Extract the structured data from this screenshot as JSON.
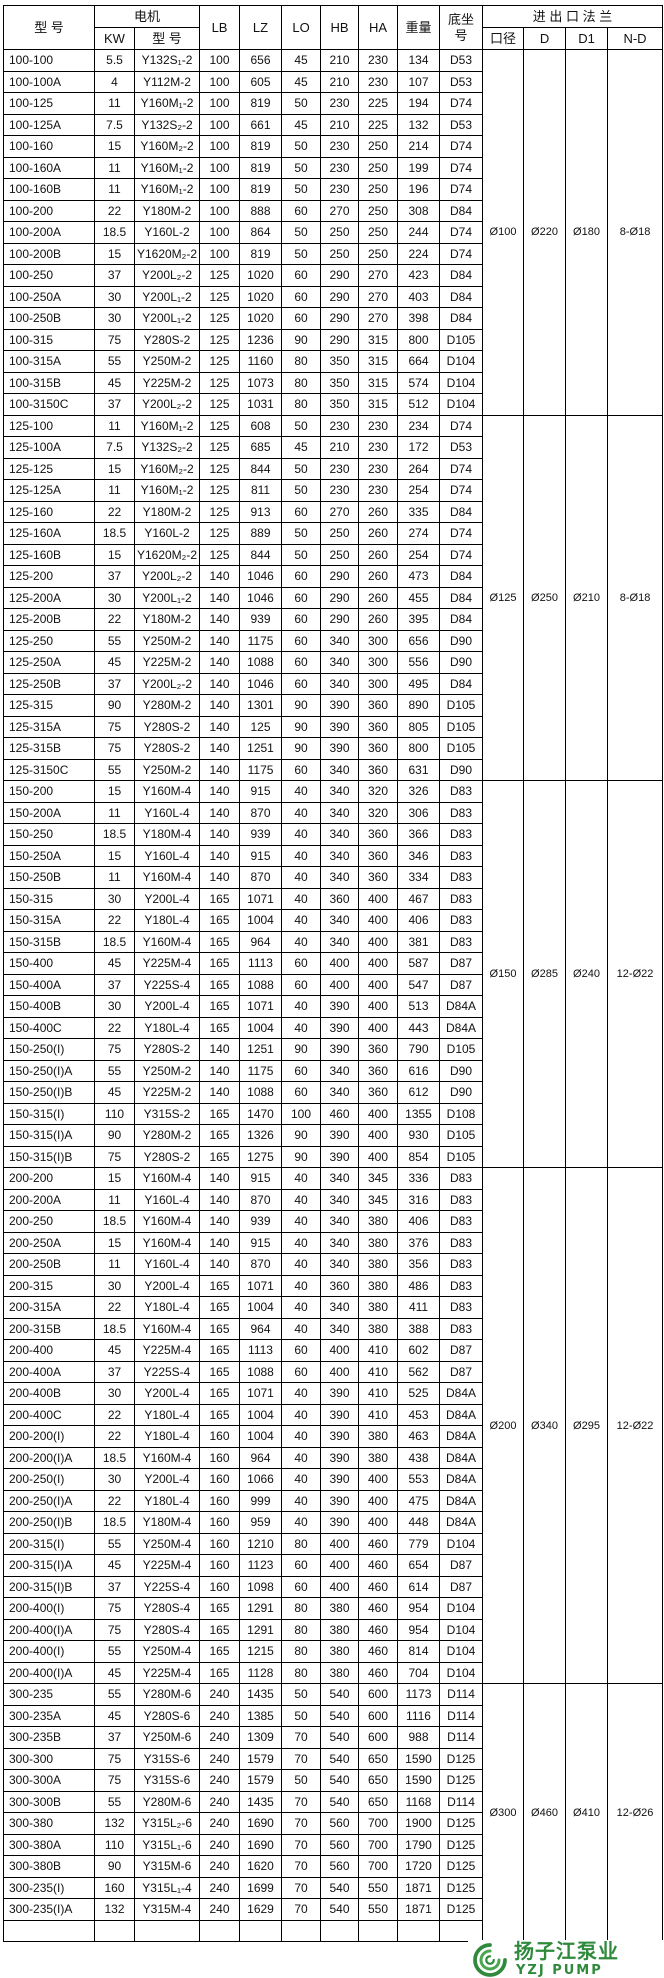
{
  "header": {
    "model": "型 号",
    "motor": "电机",
    "kw": "KW",
    "motor_model": "型 号",
    "lb": "LB",
    "lz": "LZ",
    "lo": "LO",
    "hb": "HB",
    "ha": "HA",
    "weight": "重量",
    "base_line1": "底坐",
    "base_line2": "号",
    "flange": "进 出 口 法 兰",
    "bore": "口径",
    "d": "D",
    "d1": "D1",
    "nd": "N-D"
  },
  "groups": [
    {
      "flange": [
        "Ø100",
        "Ø220",
        "Ø180",
        "8-Ø18"
      ],
      "rows": [
        [
          "100-100",
          "5.5",
          "Y132S₁-2",
          "100",
          "656",
          "45",
          "210",
          "230",
          "134",
          "D53"
        ],
        [
          "100-100A",
          "4",
          "Y112M-2",
          "100",
          "605",
          "45",
          "210",
          "230",
          "107",
          "D53"
        ],
        [
          "100-125",
          "11",
          "Y160M₁-2",
          "100",
          "819",
          "50",
          "230",
          "225",
          "194",
          "D74"
        ],
        [
          "100-125A",
          "7.5",
          "Y132S₂-2",
          "100",
          "661",
          "45",
          "210",
          "225",
          "132",
          "D53"
        ],
        [
          "100-160",
          "15",
          "Y160M₂-2",
          "100",
          "819",
          "50",
          "230",
          "250",
          "214",
          "D74"
        ],
        [
          "100-160A",
          "11",
          "Y160M₁-2",
          "100",
          "819",
          "50",
          "230",
          "250",
          "199",
          "D74"
        ],
        [
          "100-160B",
          "11",
          "Y160M₁-2",
          "100",
          "819",
          "50",
          "230",
          "250",
          "196",
          "D74"
        ],
        [
          "100-200",
          "22",
          "Y180M-2",
          "100",
          "888",
          "60",
          "270",
          "250",
          "308",
          "D84"
        ],
        [
          "100-200A",
          "18.5",
          "Y160L-2",
          "100",
          "864",
          "50",
          "250",
          "250",
          "244",
          "D74"
        ],
        [
          "100-200B",
          "15",
          "Y1620M₂-2",
          "100",
          "819",
          "50",
          "250",
          "250",
          "224",
          "D74"
        ],
        [
          "100-250",
          "37",
          "Y200L₂-2",
          "125",
          "1020",
          "60",
          "290",
          "270",
          "423",
          "D84"
        ],
        [
          "100-250A",
          "30",
          "Y200L₁-2",
          "125",
          "1020",
          "60",
          "290",
          "270",
          "403",
          "D84"
        ],
        [
          "100-250B",
          "30",
          "Y200L₁-2",
          "125",
          "1020",
          "60",
          "290",
          "270",
          "398",
          "D84"
        ],
        [
          "100-315",
          "75",
          "Y280S-2",
          "125",
          "1236",
          "90",
          "290",
          "315",
          "800",
          "D105"
        ],
        [
          "100-315A",
          "55",
          "Y250M-2",
          "125",
          "1160",
          "80",
          "350",
          "315",
          "664",
          "D104"
        ],
        [
          "100-315B",
          "45",
          "Y225M-2",
          "125",
          "1073",
          "80",
          "350",
          "315",
          "574",
          "D104"
        ],
        [
          "100-3150C",
          "37",
          "Y200L₂-2",
          "125",
          "1031",
          "80",
          "350",
          "315",
          "512",
          "D104"
        ]
      ]
    },
    {
      "flange": [
        "Ø125",
        "Ø250",
        "Ø210",
        "8-Ø18"
      ],
      "rows": [
        [
          "125-100",
          "11",
          "Y160M₁-2",
          "125",
          "608",
          "50",
          "230",
          "230",
          "234",
          "D74"
        ],
        [
          "125-100A",
          "7.5",
          "Y132S₂-2",
          "125",
          "685",
          "45",
          "210",
          "230",
          "172",
          "D53"
        ],
        [
          "125-125",
          "15",
          "Y160M₂-2",
          "125",
          "844",
          "50",
          "230",
          "230",
          "264",
          "D74"
        ],
        [
          "125-125A",
          "11",
          "Y160M₁-2",
          "125",
          "811",
          "50",
          "230",
          "230",
          "254",
          "D74"
        ],
        [
          "125-160",
          "22",
          "Y180M-2",
          "125",
          "913",
          "60",
          "270",
          "260",
          "335",
          "D84"
        ],
        [
          "125-160A",
          "18.5",
          "Y160L-2",
          "125",
          "889",
          "50",
          "250",
          "260",
          "274",
          "D74"
        ],
        [
          "125-160B",
          "15",
          "Y1620M₂-2",
          "125",
          "844",
          "50",
          "250",
          "260",
          "254",
          "D74"
        ],
        [
          "125-200",
          "37",
          "Y200L₂-2",
          "140",
          "1046",
          "60",
          "290",
          "260",
          "473",
          "D84"
        ],
        [
          "125-200A",
          "30",
          "Y200L₁-2",
          "140",
          "1046",
          "60",
          "290",
          "260",
          "455",
          "D84"
        ],
        [
          "125-200B",
          "22",
          "Y180M-2",
          "140",
          "939",
          "60",
          "290",
          "260",
          "395",
          "D84"
        ],
        [
          "125-250",
          "55",
          "Y250M-2",
          "140",
          "1175",
          "60",
          "340",
          "300",
          "656",
          "D90"
        ],
        [
          "125-250A",
          "45",
          "Y225M-2",
          "140",
          "1088",
          "60",
          "340",
          "300",
          "556",
          "D90"
        ],
        [
          "125-250B",
          "37",
          "Y200L₂-2",
          "140",
          "1046",
          "60",
          "340",
          "300",
          "495",
          "D84"
        ],
        [
          "125-315",
          "90",
          "Y280M-2",
          "140",
          "1301",
          "90",
          "390",
          "360",
          "890",
          "D105"
        ],
        [
          "125-315A",
          "75",
          "Y280S-2",
          "140",
          "125",
          "90",
          "390",
          "360",
          "805",
          "D105"
        ],
        [
          "125-315B",
          "75",
          "Y280S-2",
          "140",
          "1251",
          "90",
          "390",
          "360",
          "800",
          "D105"
        ],
        [
          "125-3150C",
          "55",
          "Y250M-2",
          "140",
          "1175",
          "60",
          "340",
          "360",
          "631",
          "D90"
        ]
      ]
    },
    {
      "flange": [
        "Ø150",
        "Ø285",
        "Ø240",
        "12-Ø22"
      ],
      "rows": [
        [
          "150-200",
          "15",
          "Y160M-4",
          "140",
          "915",
          "40",
          "340",
          "320",
          "326",
          "D83"
        ],
        [
          "150-200A",
          "11",
          "Y160L-4",
          "140",
          "870",
          "40",
          "340",
          "320",
          "306",
          "D83"
        ],
        [
          "150-250",
          "18.5",
          "Y180M-4",
          "140",
          "939",
          "40",
          "340",
          "360",
          "366",
          "D83"
        ],
        [
          "150-250A",
          "15",
          "Y160L-4",
          "140",
          "915",
          "40",
          "340",
          "360",
          "346",
          "D83"
        ],
        [
          "150-250B",
          "11",
          "Y160M-4",
          "140",
          "870",
          "40",
          "340",
          "360",
          "334",
          "D83"
        ],
        [
          "150-315",
          "30",
          "Y200L-4",
          "165",
          "1071",
          "40",
          "360",
          "400",
          "467",
          "D83"
        ],
        [
          "150-315A",
          "22",
          "Y180L-4",
          "165",
          "1004",
          "40",
          "340",
          "400",
          "406",
          "D83"
        ],
        [
          "150-315B",
          "18.5",
          "Y160M-4",
          "165",
          "964",
          "40",
          "340",
          "400",
          "381",
          "D83"
        ],
        [
          "150-400",
          "45",
          "Y225M-4",
          "165",
          "1113",
          "60",
          "400",
          "400",
          "587",
          "D87"
        ],
        [
          "150-400A",
          "37",
          "Y225S-4",
          "165",
          "1088",
          "60",
          "400",
          "400",
          "547",
          "D87"
        ],
        [
          "150-400B",
          "30",
          "Y200L-4",
          "165",
          "1071",
          "40",
          "390",
          "400",
          "513",
          "D84A"
        ],
        [
          "150-400C",
          "22",
          "Y180L-4",
          "165",
          "1004",
          "40",
          "390",
          "400",
          "443",
          "D84A"
        ],
        [
          "150-250(I)",
          "75",
          "Y280S-2",
          "140",
          "1251",
          "90",
          "390",
          "360",
          "790",
          "D105"
        ],
        [
          "150-250(I)A",
          "55",
          "Y250M-2",
          "140",
          "1175",
          "60",
          "340",
          "360",
          "616",
          "D90"
        ],
        [
          "150-250(I)B",
          "45",
          "Y225M-2",
          "140",
          "1088",
          "60",
          "340",
          "360",
          "612",
          "D90"
        ],
        [
          "150-315(I)",
          "110",
          "Y315S-2",
          "165",
          "1470",
          "100",
          "460",
          "400",
          "1355",
          "D108"
        ],
        [
          "150-315(I)A",
          "90",
          "Y280M-2",
          "165",
          "1326",
          "90",
          "390",
          "400",
          "930",
          "D105"
        ],
        [
          "150-315(I)B",
          "75",
          "Y280S-2",
          "165",
          "1275",
          "90",
          "390",
          "400",
          "854",
          "D105"
        ]
      ]
    },
    {
      "flange": [
        "Ø200",
        "Ø340",
        "Ø295",
        "12-Ø22"
      ],
      "rows": [
        [
          "200-200",
          "15",
          "Y160M-4",
          "140",
          "915",
          "40",
          "340",
          "345",
          "336",
          "D83"
        ],
        [
          "200-200A",
          "11",
          "Y160L-4",
          "140",
          "870",
          "40",
          "340",
          "345",
          "316",
          "D83"
        ],
        [
          "200-250",
          "18.5",
          "Y160M-4",
          "140",
          "939",
          "40",
          "340",
          "380",
          "406",
          "D83"
        ],
        [
          "200-250A",
          "15",
          "Y160M-4",
          "140",
          "915",
          "40",
          "340",
          "380",
          "376",
          "D83"
        ],
        [
          "200-250B",
          "11",
          "Y160L-4",
          "140",
          "870",
          "40",
          "340",
          "380",
          "356",
          "D83"
        ],
        [
          "200-315",
          "30",
          "Y200L-4",
          "165",
          "1071",
          "40",
          "360",
          "380",
          "486",
          "D83"
        ],
        [
          "200-315A",
          "22",
          "Y180L-4",
          "165",
          "1004",
          "40",
          "340",
          "380",
          "411",
          "D83"
        ],
        [
          "200-315B",
          "18.5",
          "Y160M-4",
          "165",
          "964",
          "40",
          "340",
          "380",
          "388",
          "D83"
        ],
        [
          "200-400",
          "45",
          "Y225M-4",
          "165",
          "1113",
          "60",
          "400",
          "410",
          "602",
          "D87"
        ],
        [
          "200-400A",
          "37",
          "Y225S-4",
          "165",
          "1088",
          "60",
          "400",
          "410",
          "562",
          "D87"
        ],
        [
          "200-400B",
          "30",
          "Y200L-4",
          "165",
          "1071",
          "40",
          "390",
          "410",
          "525",
          "D84A"
        ],
        [
          "200-400C",
          "22",
          "Y180L-4",
          "165",
          "1004",
          "40",
          "390",
          "410",
          "453",
          "D84A"
        ],
        [
          "200-200(I)",
          "22",
          "Y180L-4",
          "160",
          "1004",
          "40",
          "390",
          "380",
          "463",
          "D84A"
        ],
        [
          "200-200(I)A",
          "18.5",
          "Y160M-4",
          "160",
          "964",
          "40",
          "390",
          "380",
          "438",
          "D84A"
        ],
        [
          "200-250(I)",
          "30",
          "Y200L-4",
          "160",
          "1066",
          "40",
          "390",
          "400",
          "553",
          "D84A"
        ],
        [
          "200-250(I)A",
          "22",
          "Y180L-4",
          "160",
          "999",
          "40",
          "390",
          "400",
          "475",
          "D84A"
        ],
        [
          "200-250(I)B",
          "18.5",
          "Y180M-4",
          "160",
          "959",
          "40",
          "390",
          "400",
          "448",
          "D84A"
        ],
        [
          "200-315(I)",
          "55",
          "Y250M-4",
          "160",
          "1210",
          "80",
          "400",
          "460",
          "779",
          "D104"
        ],
        [
          "200-315(I)A",
          "45",
          "Y225M-4",
          "160",
          "1123",
          "60",
          "400",
          "460",
          "654",
          "D87"
        ],
        [
          "200-315(I)B",
          "37",
          "Y225S-4",
          "160",
          "1098",
          "60",
          "400",
          "460",
          "614",
          "D87"
        ],
        [
          "200-400(I)",
          "75",
          "Y280S-4",
          "165",
          "1291",
          "80",
          "380",
          "460",
          "954",
          "D104"
        ],
        [
          "200-400(I)A",
          "75",
          "Y280S-4",
          "165",
          "1291",
          "80",
          "380",
          "460",
          "954",
          "D104"
        ],
        [
          "200-400(I)",
          "55",
          "Y250M-4",
          "165",
          "1215",
          "80",
          "380",
          "460",
          "814",
          "D104"
        ],
        [
          "200-400(I)A",
          "45",
          "Y225M-4",
          "165",
          "1128",
          "80",
          "380",
          "460",
          "704",
          "D104"
        ]
      ]
    },
    {
      "flange": [
        "Ø300",
        "Ø460",
        "Ø410",
        "12-Ø26"
      ],
      "rows": [
        [
          "300-235",
          "55",
          "Y280M-6",
          "240",
          "1435",
          "50",
          "540",
          "600",
          "1173",
          "D114"
        ],
        [
          "300-235A",
          "45",
          "Y280S-6",
          "240",
          "1385",
          "50",
          "540",
          "600",
          "1116",
          "D114"
        ],
        [
          "300-235B",
          "37",
          "Y250M-6",
          "240",
          "1309",
          "70",
          "540",
          "600",
          "988",
          "D114"
        ],
        [
          "300-300",
          "75",
          "Y315S-6",
          "240",
          "1579",
          "70",
          "540",
          "650",
          "1590",
          "D125"
        ],
        [
          "300-300A",
          "75",
          "Y315S-6",
          "240",
          "1579",
          "50",
          "540",
          "650",
          "1590",
          "D125"
        ],
        [
          "300-300B",
          "55",
          "Y280M-6",
          "240",
          "1435",
          "70",
          "540",
          "650",
          "1168",
          "D114"
        ],
        [
          "300-380",
          "132",
          "Y315L₂-6",
          "240",
          "1690",
          "70",
          "560",
          "700",
          "1900",
          "D125"
        ],
        [
          "300-380A",
          "110",
          "Y315L₁-6",
          "240",
          "1690",
          "70",
          "560",
          "700",
          "1790",
          "D125"
        ],
        [
          "300-380B",
          "90",
          "Y315M-6",
          "240",
          "1620",
          "70",
          "560",
          "700",
          "1720",
          "D125"
        ],
        [
          "300-235(I)",
          "160",
          "Y315L₁-4",
          "240",
          "1699",
          "70",
          "540",
          "550",
          "1871",
          "D125"
        ],
        [
          "300-235(I)A",
          "132",
          "Y315M-4",
          "240",
          "1629",
          "70",
          "540",
          "550",
          "1871",
          "D125"
        ]
      ]
    }
  ],
  "logo": {
    "cn": "扬子江泵业",
    "en": "YZJ PUMP",
    "color": "#2f8a3c"
  }
}
